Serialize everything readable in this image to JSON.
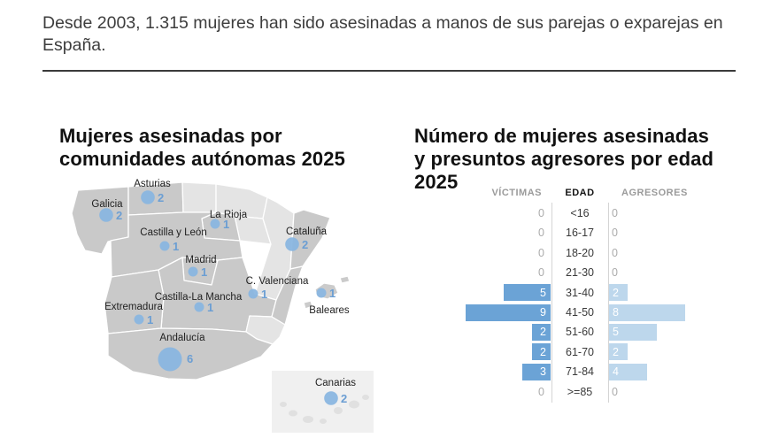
{
  "intro": {
    "text": "Desde 2003, 1.315 mujeres han sido asesinadas a manos de sus parejas o exparejas en España."
  },
  "map_panel": {
    "title_line1": "Mujeres asesinadas por",
    "title_line2": "comunidades autónomas 2025",
    "bubble_color": "#8ab6e0",
    "region_active_color": "#c9c9c9",
    "region_inactive_color": "#e4e4e4",
    "regions": [
      {
        "name": "Galicia",
        "value": 2
      },
      {
        "name": "Asturias",
        "value": 2
      },
      {
        "name": "La Rioja",
        "value": 1
      },
      {
        "name": "Castilla y León",
        "value": 1
      },
      {
        "name": "Madrid",
        "value": 1
      },
      {
        "name": "Castilla-La Mancha",
        "value": 1
      },
      {
        "name": "C. Valenciana",
        "value": 1
      },
      {
        "name": "Extremadura",
        "value": 1
      },
      {
        "name": "Andalucía",
        "value": 6
      },
      {
        "name": "Cataluña",
        "value": 2
      },
      {
        "name": "Baleares",
        "value": 1
      },
      {
        "name": "Canarias",
        "value": 2
      }
    ]
  },
  "chart_panel": {
    "title_line1": "Número de mujeres asesinadas",
    "title_line2": "y presuntos agresores por edad",
    "title_line3": "2025"
  },
  "chart_data": {
    "type": "bar",
    "variant": "butterfly",
    "title": "Número de mujeres asesinadas y presuntos agresores por edad 2025",
    "center_axis_label": "EDAD",
    "categories": [
      "<16",
      "16-17",
      "18-20",
      "21-30",
      "31-40",
      "41-50",
      "51-60",
      "61-70",
      "71-84",
      ">=85"
    ],
    "series": [
      {
        "name": "VÍCTIMAS",
        "values": [
          0,
          0,
          0,
          0,
          5,
          9,
          2,
          2,
          3,
          0
        ],
        "color": "#6ba3d6"
      },
      {
        "name": "AGRESORES",
        "values": [
          0,
          0,
          0,
          0,
          2,
          8,
          5,
          2,
          4,
          0
        ],
        "color": "#bdd7ec"
      }
    ],
    "xlim": [
      0,
      9
    ],
    "legend_position": "column-headers",
    "grid": false
  }
}
